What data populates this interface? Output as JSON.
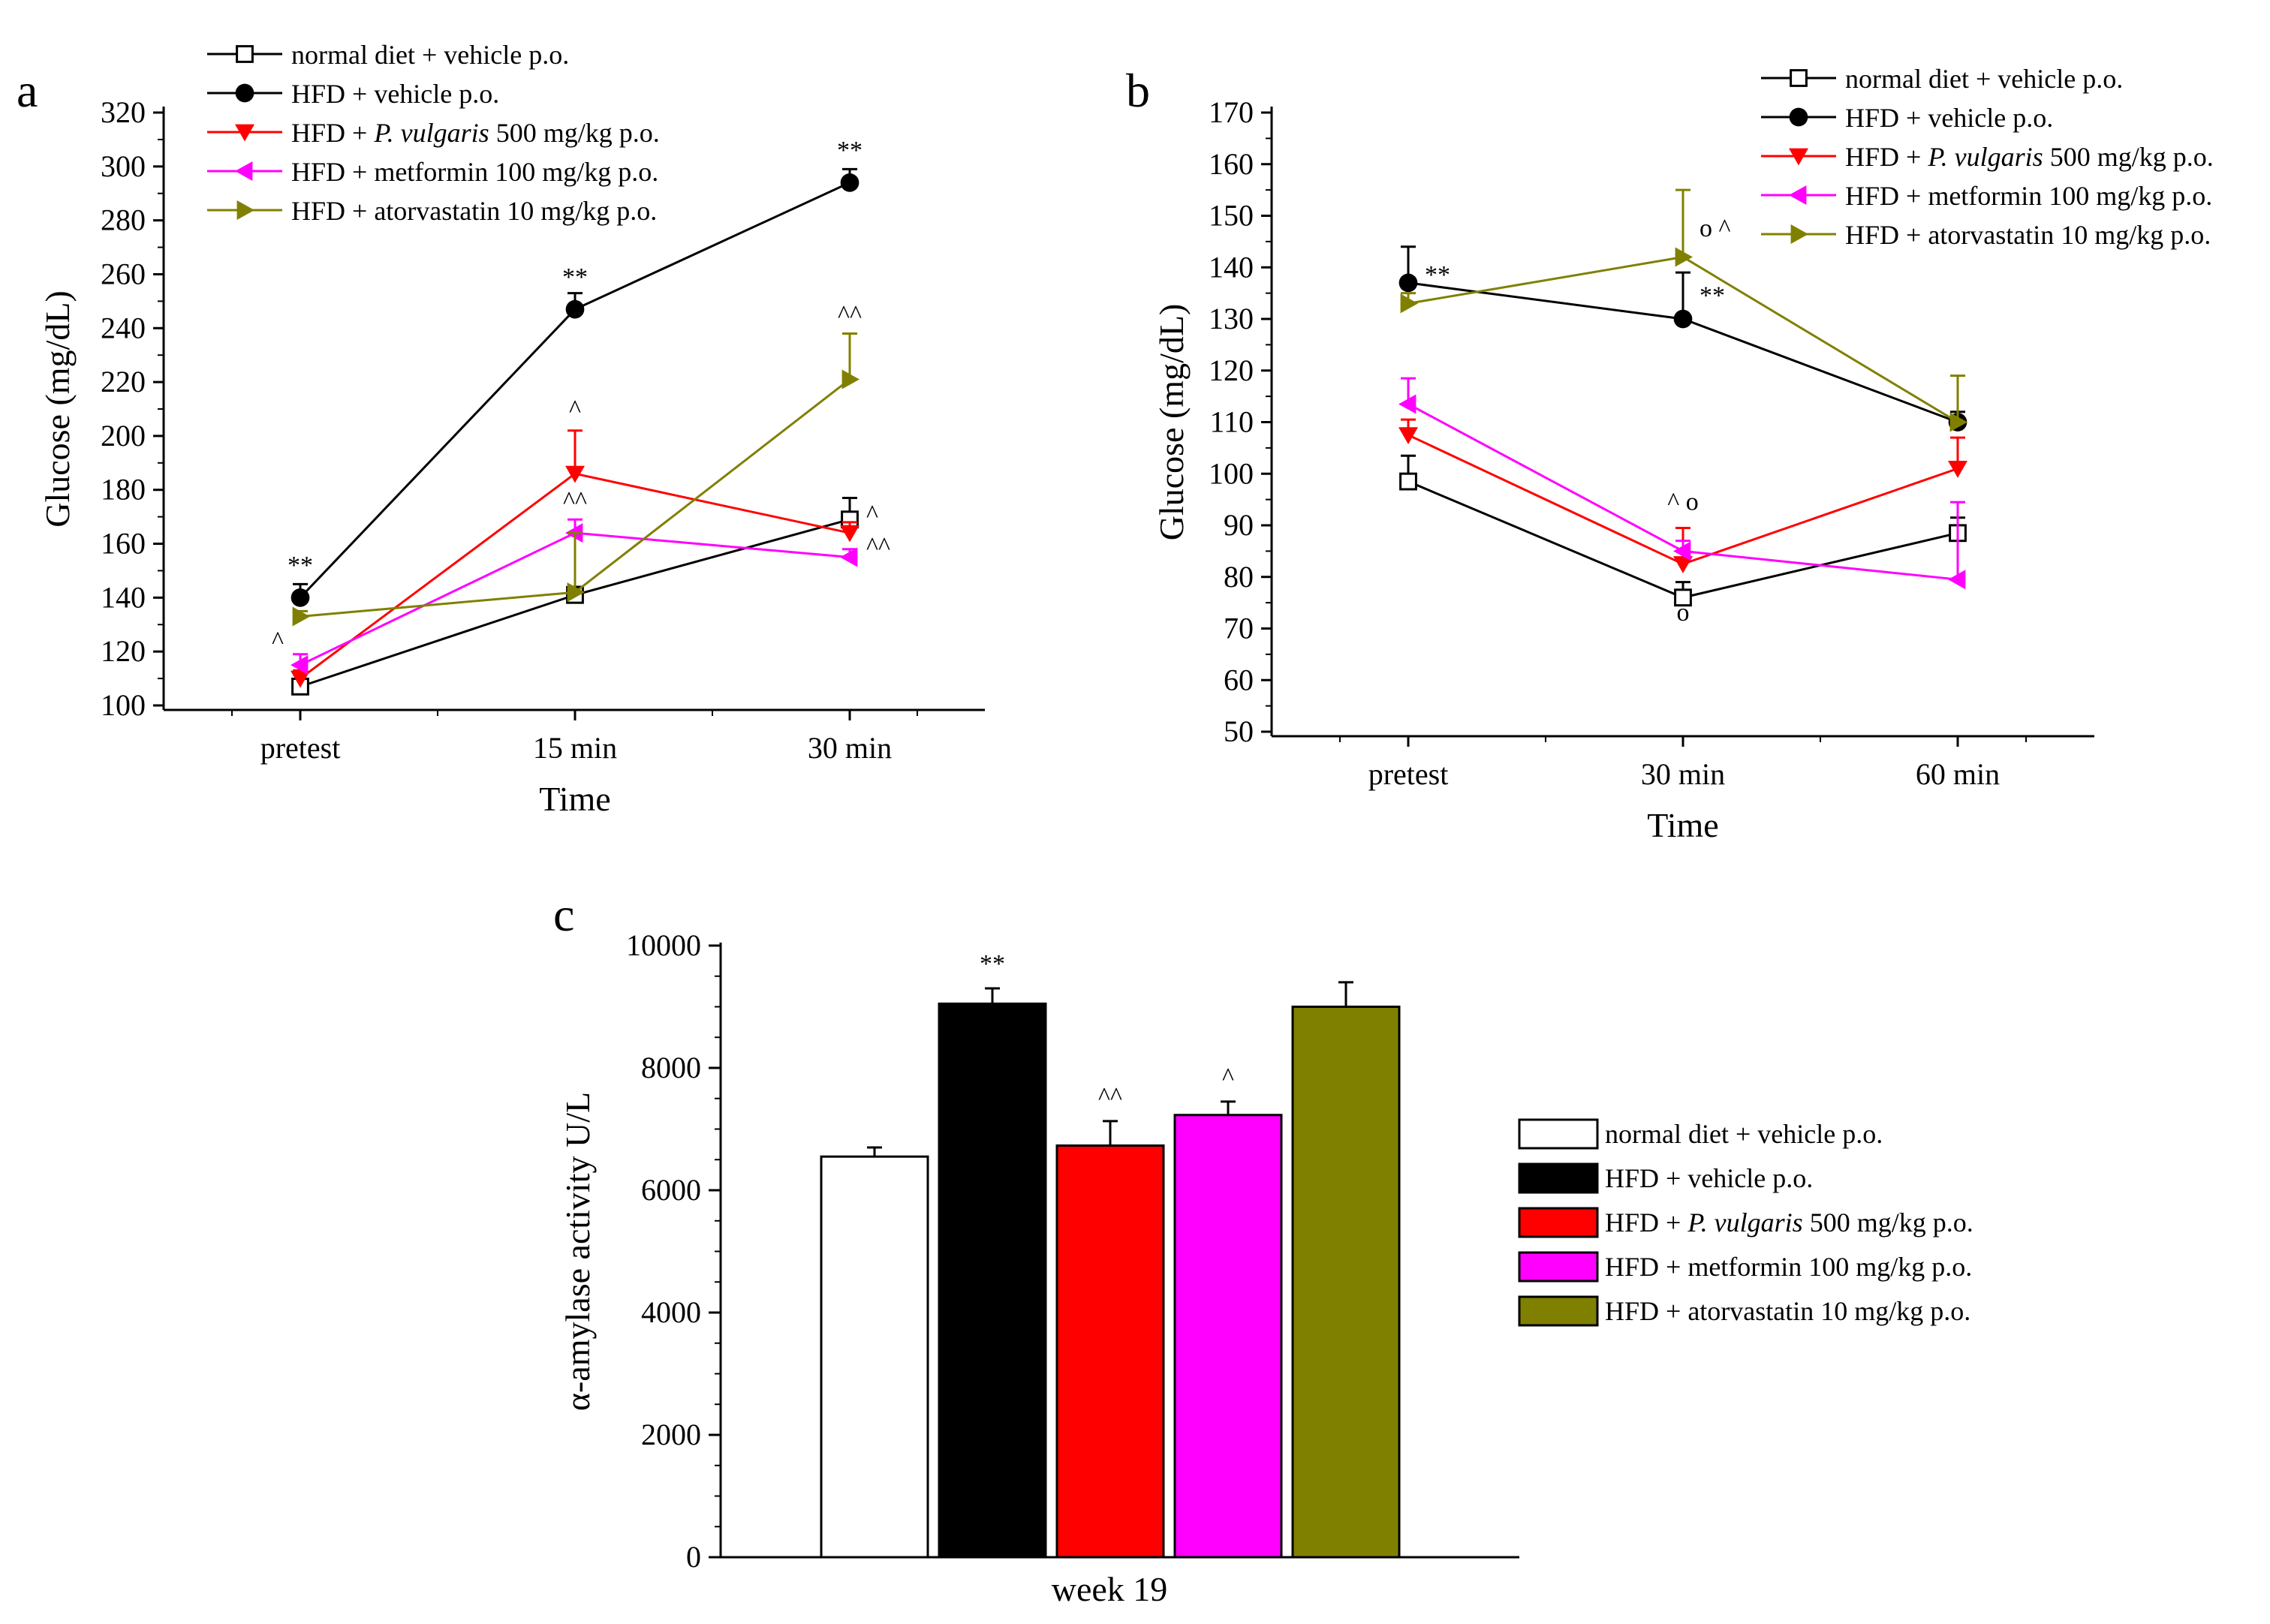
{
  "chart_data": [
    {
      "panel": "a",
      "type": "line",
      "xlabel": "Time",
      "ylabel": "Glucose (mg/dL)",
      "categories": [
        "pretest",
        "15 min",
        "30 min"
      ],
      "ylim": [
        100,
        320
      ],
      "yticks": [
        100,
        120,
        140,
        160,
        180,
        200,
        220,
        240,
        260,
        280,
        300,
        320
      ],
      "series": [
        {
          "name": "normal diet + vehicle p.o.",
          "marker": "open-square",
          "color": "#000000",
          "values": [
            107,
            141,
            169
          ],
          "err": [
            2,
            3,
            8
          ]
        },
        {
          "name": "HFD + vehicle p.o.",
          "marker": "filled-circle",
          "color": "#000000",
          "values": [
            140,
            247,
            294
          ],
          "err": [
            5,
            6,
            5
          ]
        },
        {
          "name": "HFD + ",
          "name_italic": "P. vulgaris",
          "name_suffix": " 500 mg/kg p.o.",
          "marker": "down-triangle",
          "color": "#ff0000",
          "values": [
            110,
            186,
            164
          ],
          "err": [
            3,
            16,
            4
          ]
        },
        {
          "name": "HFD + metformin 100 mg/kg p.o.",
          "marker": "left-triangle",
          "color": "#ff00ff",
          "values": [
            115,
            164,
            155
          ],
          "err": [
            4,
            5,
            3
          ]
        },
        {
          "name": "HFD + atorvastatin 10 mg/kg p.o.",
          "marker": "right-triangle",
          "color": "#808000",
          "values": [
            133,
            142,
            221
          ],
          "err": [
            2,
            22,
            17
          ]
        }
      ],
      "annotations": [
        {
          "label": "**",
          "x": "pretest",
          "y": 149
        },
        {
          "label": "^",
          "x": "pretest",
          "y": 121,
          "offset": "left"
        },
        {
          "label": "**",
          "x": "15 min",
          "y": 256
        },
        {
          "label": "^",
          "x": "15 min",
          "y": 207
        },
        {
          "label": "^^",
          "x": "15 min",
          "y": 173
        },
        {
          "label": "**",
          "x": "30 min",
          "y": 303
        },
        {
          "label": "^^",
          "x": "30 min",
          "y": 242
        },
        {
          "label": "^",
          "x": "30 min",
          "y": 168,
          "offset": "right"
        },
        {
          "label": "^^",
          "x": "30 min",
          "y": 156,
          "offset": "right"
        }
      ]
    },
    {
      "panel": "b",
      "type": "line",
      "xlabel": "Time",
      "ylabel": "Glucose (mg/dL)",
      "categories": [
        "pretest",
        "30 min",
        "60 min"
      ],
      "ylim": [
        50,
        170
      ],
      "yticks": [
        50,
        60,
        70,
        80,
        90,
        100,
        110,
        120,
        130,
        140,
        150,
        160,
        170
      ],
      "series": [
        {
          "name": "normal diet + vehicle p.o.",
          "marker": "open-square",
          "color": "#000000",
          "values": [
            98.5,
            76,
            88.5
          ],
          "err": [
            5,
            3,
            3
          ]
        },
        {
          "name": "HFD + vehicle p.o.",
          "marker": "filled-circle",
          "color": "#000000",
          "values": [
            137,
            130,
            110
          ],
          "err": [
            7,
            9,
            2
          ]
        },
        {
          "name": "HFD + ",
          "name_italic": "P. vulgaris",
          "name_suffix": " 500 mg/kg p.o.",
          "marker": "down-triangle",
          "color": "#ff0000",
          "values": [
            107.5,
            82.5,
            101
          ],
          "err": [
            3,
            7,
            6
          ]
        },
        {
          "name": "HFD + metformin 100 mg/kg p.o.",
          "marker": "left-triangle",
          "color": "#ff00ff",
          "values": [
            113.5,
            85,
            79.5
          ],
          "err": [
            5,
            2,
            15
          ]
        },
        {
          "name": "HFD + atorvastatin 10 mg/kg p.o.",
          "marker": "right-triangle",
          "color": "#808000",
          "values": [
            133,
            142,
            110
          ],
          "err": [
            2,
            13,
            9
          ]
        }
      ],
      "annotations": [
        {
          "label": "**",
          "x": "pretest",
          "y": 137,
          "offset": "right"
        },
        {
          "label": "o ^",
          "x": "30 min",
          "y": 146,
          "offset": "right"
        },
        {
          "label": "**",
          "x": "30 min",
          "y": 133,
          "offset": "right"
        },
        {
          "label": "^ o",
          "x": "30 min",
          "y": 93
        },
        {
          "label": "o",
          "x": "30 min",
          "y": 71.5
        }
      ]
    },
    {
      "panel": "c",
      "type": "bar",
      "xlabel": "week 19",
      "ylabel": "α-amylase activity U/L",
      "ylim": [
        0,
        10000
      ],
      "yticks": [
        0,
        2000,
        4000,
        6000,
        8000,
        10000
      ],
      "series": [
        {
          "name": "normal diet + vehicle p.o.",
          "color": "#ffffff",
          "value": 6550,
          "err": 150
        },
        {
          "name": "HFD + vehicle p.o.",
          "color": "#000000",
          "value": 9050,
          "err": 250,
          "annotation": "**"
        },
        {
          "name": "HFD + ",
          "name_italic": "P. vulgaris",
          "name_suffix": " 500 mg/kg p.o.",
          "color": "#ff0000",
          "value": 6730,
          "err": 400,
          "annotation": "^^"
        },
        {
          "name": "HFD + metformin 100 mg/kg p.o.",
          "color": "#ff00ff",
          "value": 7230,
          "err": 220,
          "annotation": "^"
        },
        {
          "name": "HFD + atorvastatin 10 mg/kg p.o.",
          "color": "#808000",
          "value": 9000,
          "err": 400
        }
      ]
    }
  ]
}
